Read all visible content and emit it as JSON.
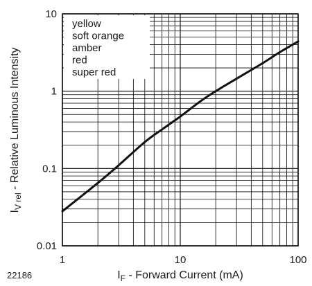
{
  "figure_id": "22186",
  "chart_data": {
    "type": "line",
    "xlabel": {
      "main": "I",
      "sub": "F",
      "rest": " - Forward Current (mA)"
    },
    "ylabel": {
      "main": "I",
      "sub": "V rel",
      "rest": " - Relative Luminous Intensity"
    },
    "x_scale": "log",
    "y_scale": "log",
    "xlim": [
      1,
      100
    ],
    "ylim": [
      0.01,
      10
    ],
    "x_ticks": [
      "1",
      "10",
      "100"
    ],
    "y_ticks": [
      "0.01",
      "0.1",
      "1",
      "10"
    ],
    "grid": true,
    "legend_position": "top-left",
    "legend": [
      "yellow",
      "soft orange",
      "amber",
      "red",
      "super red"
    ],
    "series": [
      {
        "x": [
          1,
          2,
          3,
          5,
          7,
          10,
          15,
          20,
          30,
          50,
          70,
          100
        ],
        "y": [
          0.028,
          0.065,
          0.11,
          0.22,
          0.32,
          0.47,
          0.75,
          1.0,
          1.45,
          2.3,
          3.2,
          4.4
        ]
      }
    ],
    "colors": {
      "line": "#111111",
      "grid": "#000000",
      "frame": "#000000"
    }
  }
}
